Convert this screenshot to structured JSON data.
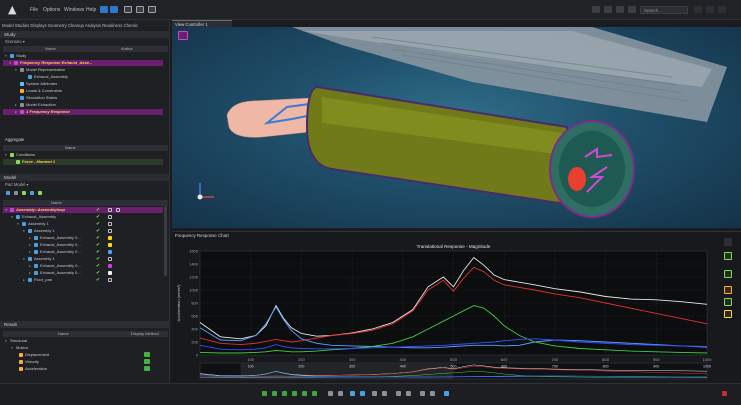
{
  "topbar": {
    "menu": [
      "File",
      "Options",
      "Windows",
      "Help"
    ],
    "search_placeholder": "Search..."
  },
  "left_panel": {
    "tabs": "Model  Studies  Displays  Geometry Cleanup  Analysis Readiness  Chemic",
    "study_section": "Study",
    "study_sub": "Scenario ▾",
    "study_cols": {
      "name": "Name",
      "author": "Author"
    },
    "study_rows": [
      "Study",
      "Frequency Response Exhaust_Asse...",
      "Model Representation",
      "Exhaust_Assembly",
      "System Attributes",
      "Loads & Constraints",
      "Simulation Status",
      "Model Extraction",
      "1 Frequency Response"
    ],
    "aggregate_section": "Aggregate",
    "aggregate_cols": {
      "name": "Name"
    },
    "aggregate_rows": [
      "Conditions",
      "Force - Moment 1"
    ],
    "model_section": "Model",
    "model_sub": "Part Model ▾",
    "model_cols": {
      "name": "Name"
    },
    "model_rows": [
      "Assembly::Assemblyloop",
      "Exhaust_Assembly",
      "Assembly 1",
      "Assembly 1",
      "Exhaust_Assembly 0...",
      "Exhaust_Assembly 0...",
      "Exhaust_Assembly 0...",
      "Assembly 1",
      "Exhaust_Assembly 0...",
      "Exhaust_Assembly 0...",
      "Floor_pan"
    ],
    "result_section": "Result",
    "result_cols": {
      "name": "Name",
      "method": "Display Method"
    },
    "result_rows": [
      "Structural",
      "Motion",
      "Displacement",
      "Velocity",
      "Acceleration"
    ]
  },
  "viewport": {
    "tab_label": "View Controller 1"
  },
  "chart_panel": {
    "title": "Frequency Response Chart"
  },
  "chart_data": {
    "type": "line",
    "title": "Translational Response - Magnitude",
    "xlabel": "Frequency (Hz)",
    "ylabel": "Acceleration (mm/s²)",
    "xlim": [
      0,
      1000
    ],
    "ylim": [
      0,
      1600
    ],
    "x_ticks": [
      "100",
      "200",
      "300",
      "400",
      "500",
      "600",
      "700",
      "800",
      "900",
      "1000"
    ],
    "y_ticks": [
      "0",
      "200",
      "400",
      "600",
      "800",
      "1000",
      "1200",
      "1400",
      "1600"
    ],
    "overview_ticks": [
      "100",
      "200",
      "300",
      "400",
      "500",
      "600",
      "700",
      "800",
      "900",
      "1000"
    ],
    "x": [
      0,
      40,
      80,
      110,
      130,
      150,
      165,
      180,
      200,
      230,
      260,
      300,
      340,
      380,
      420,
      450,
      480,
      500,
      520,
      540,
      560,
      580,
      600,
      630,
      660,
      700,
      750,
      800,
      850,
      900,
      950,
      1000
    ],
    "series": [
      {
        "color": "#e8e8e8",
        "values": [
          500,
          280,
          250,
          300,
          450,
          760,
          560,
          420,
          330,
          290,
          300,
          340,
          400,
          500,
          700,
          1050,
          1200,
          1050,
          1300,
          1500,
          1380,
          1230,
          1160,
          1120,
          1080,
          1020,
          970,
          900,
          860,
          850,
          820,
          780
        ]
      },
      {
        "color": "#e03030",
        "values": [
          260,
          180,
          160,
          180,
          210,
          240,
          220,
          200,
          220,
          260,
          300,
          330,
          380,
          480,
          680,
          1000,
          1150,
          980,
          1180,
          1350,
          1280,
          1150,
          1080,
          1040,
          1000,
          940,
          880,
          800,
          720,
          640,
          560,
          480
        ]
      },
      {
        "color": "#5aa0ff",
        "values": [
          420,
          230,
          220,
          300,
          480,
          740,
          540,
          380,
          250,
          180,
          150,
          140,
          130,
          120,
          110,
          110,
          120,
          130,
          140,
          150,
          150,
          150,
          140,
          150,
          200,
          230,
          220,
          200,
          180,
          160,
          140,
          120
        ]
      },
      {
        "color": "#3fcf3f",
        "values": [
          40,
          30,
          30,
          40,
          50,
          70,
          60,
          50,
          50,
          60,
          80,
          100,
          130,
          180,
          280,
          400,
          520,
          600,
          680,
          760,
          720,
          600,
          450,
          300,
          200,
          140,
          100,
          80,
          60,
          50,
          40,
          30
        ]
      },
      {
        "color": "#3c4cff",
        "values": [
          150,
          90,
          80,
          90,
          110,
          160,
          130,
          110,
          100,
          95,
          95,
          100,
          110,
          120,
          130,
          140,
          150,
          160,
          170,
          180,
          190,
          200,
          220,
          240,
          250,
          230,
          200,
          180,
          160,
          150,
          140,
          130
        ]
      }
    ]
  }
}
